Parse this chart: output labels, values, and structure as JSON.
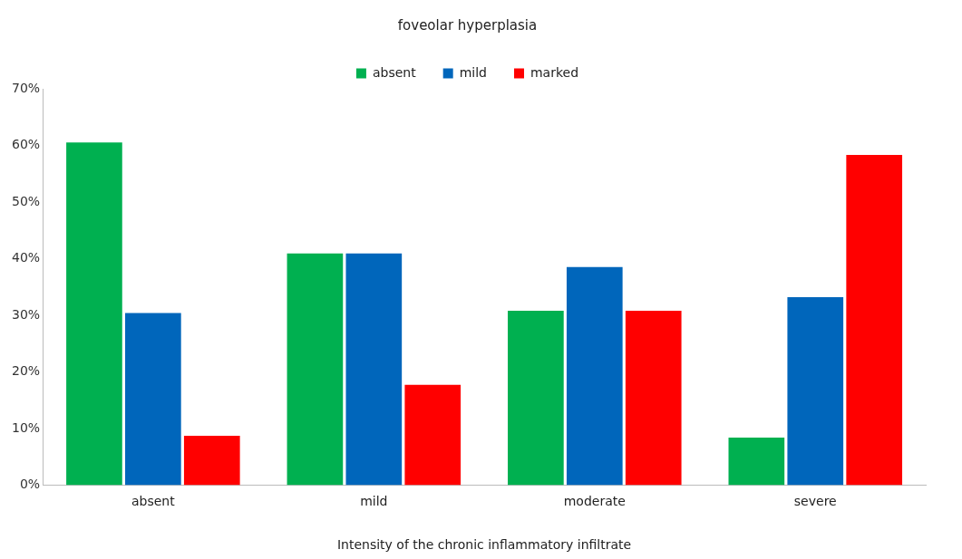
{
  "chart_data": {
    "type": "bar",
    "title": "foveolar hyperplasia",
    "xlabel": "Intensity of the chronic inflammatory infiltrate",
    "categories": [
      "absent",
      "mild",
      "moderate",
      "severe"
    ],
    "series": [
      {
        "name": "absent",
        "color": "#00b050",
        "values": [
          60.5,
          40.9,
          30.8,
          8.4
        ]
      },
      {
        "name": "mild",
        "color": "#0066bb",
        "values": [
          30.4,
          40.9,
          38.5,
          33.2
        ]
      },
      {
        "name": "marked",
        "color": "#ff0000",
        "values": [
          8.7,
          17.7,
          30.8,
          58.3
        ]
      }
    ],
    "ylim": [
      0,
      70
    ],
    "yticks": [
      {
        "value": 0,
        "label": "0%"
      },
      {
        "value": 10,
        "label": "10%"
      },
      {
        "value": 20,
        "label": "20%"
      },
      {
        "value": 30,
        "label": "30%"
      },
      {
        "value": 40,
        "label": "40%"
      },
      {
        "value": 50,
        "label": "50%"
      },
      {
        "value": 60,
        "label": "60%"
      },
      {
        "value": 70,
        "label": "70%"
      }
    ],
    "grid": false,
    "legend": "top"
  }
}
